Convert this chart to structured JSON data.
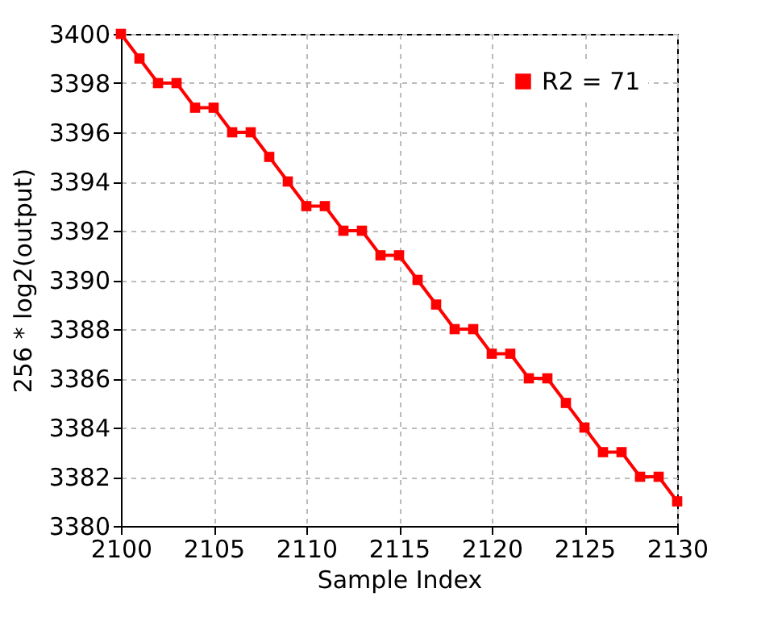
{
  "chart_data": {
    "type": "line",
    "xlabel": "Sample Index",
    "ylabel": "256 * log2(output)",
    "x": [
      2100,
      2101,
      2102,
      2103,
      2104,
      2105,
      2106,
      2107,
      2108,
      2109,
      2110,
      2111,
      2112,
      2113,
      2114,
      2115,
      2116,
      2117,
      2118,
      2119,
      2120,
      2121,
      2122,
      2123,
      2124,
      2125,
      2126,
      2127,
      2128,
      2129,
      2130
    ],
    "series": [
      {
        "name": "R2 = 71",
        "color": "#ff0000",
        "values": [
          3400,
          3399,
          3398,
          3398,
          3397,
          3397,
          3396,
          3396,
          3395,
          3394,
          3393,
          3393,
          3392,
          3392,
          3391,
          3391,
          3390,
          3389,
          3388,
          3388,
          3387,
          3387,
          3386,
          3386,
          3385,
          3384,
          3383,
          3383,
          3382,
          3382,
          3381
        ]
      }
    ],
    "xlim": [
      2100,
      2130
    ],
    "xticks": [
      2100,
      2105,
      2110,
      2115,
      2120,
      2125,
      2130
    ],
    "ylim": [
      3380,
      3400
    ],
    "yticks": [
      3380,
      3382,
      3384,
      3386,
      3388,
      3390,
      3392,
      3394,
      3396,
      3398,
      3400
    ],
    "grid": true,
    "legend": "top right",
    "marker": "square",
    "line_style": "solid"
  }
}
